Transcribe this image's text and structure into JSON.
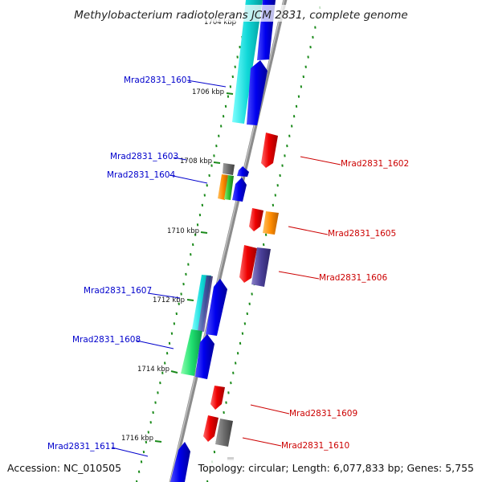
{
  "title": "Methylobacterium radiotolerans JCM 2831, complete genome",
  "footer": {
    "accession": "Accession: NC_010505",
    "summary": "Topology: circular; Length: 6,077,833 bp; Genes: 5,755"
  },
  "colors": {
    "forward_label": "#0000cc",
    "reverse_label": "#cc0000",
    "tick": "#1a8a1a",
    "backbone": "#8c8c8c"
  },
  "kbp_markers": [
    {
      "label": "1704 kbp",
      "kbp": 1704
    },
    {
      "label": "1706 kbp",
      "kbp": 1706
    },
    {
      "label": "1708 kbp",
      "kbp": 1708
    },
    {
      "label": "1710 kbp",
      "kbp": 1710
    },
    {
      "label": "1712 kbp",
      "kbp": 1712
    },
    {
      "label": "1714 kbp",
      "kbp": 1714
    },
    {
      "label": "1716 kbp",
      "kbp": 1716
    }
  ],
  "gene_labels": [
    {
      "name": "Mrad2831_1601",
      "strand": "forward"
    },
    {
      "name": "Mrad2831_1602",
      "strand": "reverse"
    },
    {
      "name": "Mrad2831_1603",
      "strand": "forward"
    },
    {
      "name": "Mrad2831_1604",
      "strand": "forward"
    },
    {
      "name": "Mrad2831_1605",
      "strand": "reverse"
    },
    {
      "name": "Mrad2831_1606",
      "strand": "reverse"
    },
    {
      "name": "Mrad2831_1607",
      "strand": "forward"
    },
    {
      "name": "Mrad2831_1608",
      "strand": "forward"
    },
    {
      "name": "Mrad2831_1609",
      "strand": "reverse"
    },
    {
      "name": "Mrad2831_1610",
      "strand": "reverse"
    },
    {
      "name": "Mrad2831_1611",
      "strand": "forward"
    }
  ]
}
